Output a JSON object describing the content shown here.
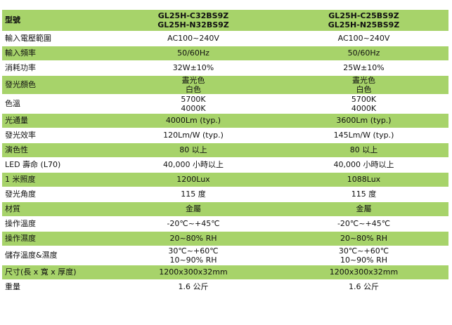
{
  "header": {
    "label": "型號",
    "model_a": [
      "GL25H-C32BS9Z",
      "GL25H-N32BS9Z"
    ],
    "model_b": [
      "GL25H-C25BS9Z",
      "GL25H-N25BS9Z"
    ]
  },
  "rows": [
    {
      "label": "輸入電壓範圍",
      "a": [
        "AC100~240V"
      ],
      "b": [
        "AC100~240V"
      ]
    },
    {
      "label": "輸入頻率",
      "a": [
        "50/60Hz"
      ],
      "b": [
        "50/60Hz"
      ]
    },
    {
      "label": "消耗功率",
      "a": [
        "32W±10%"
      ],
      "b": [
        "25W±10%"
      ]
    },
    {
      "label": "發光顏色",
      "a": [
        "晝光色",
        "白色"
      ],
      "b": [
        "晝光色",
        "白色"
      ]
    },
    {
      "label": "色溫",
      "a": [
        "5700K",
        "4000K"
      ],
      "b": [
        "5700K",
        "4000K"
      ]
    },
    {
      "label": "光通量",
      "a": [
        "4000Lm (typ.)"
      ],
      "b": [
        "3600Lm (typ.)"
      ]
    },
    {
      "label": "發光效率",
      "a": [
        "120Lm/W (typ.)"
      ],
      "b": [
        "145Lm/W (typ.)"
      ]
    },
    {
      "label": "演色性",
      "a": [
        "80 以上"
      ],
      "b": [
        "80 以上"
      ]
    },
    {
      "label": "LED 壽命 (L70)",
      "a": [
        "40,000 小時以上"
      ],
      "b": [
        "40,000 小時以上"
      ]
    },
    {
      "label": "1 米照度",
      "a": [
        "1200Lux"
      ],
      "b": [
        "1088Lux"
      ]
    },
    {
      "label": "發光角度",
      "a": [
        "115 度"
      ],
      "b": [
        "115 度"
      ]
    },
    {
      "label": "材質",
      "a": [
        "金屬"
      ],
      "b": [
        "金屬"
      ]
    },
    {
      "label": "操作溫度",
      "a": [
        "-20℃~+45℃"
      ],
      "b": [
        "-20℃~+45℃"
      ]
    },
    {
      "label": "操作濕度",
      "a": [
        "20~80% RH"
      ],
      "b": [
        "20~80% RH"
      ]
    },
    {
      "label": "儲存溫度&濕度",
      "a": [
        "30℃~+60℃",
        "10~90% RH"
      ],
      "b": [
        "30℃~+60℃",
        "10~90% RH"
      ]
    },
    {
      "label": "尺寸(長 x 寬 x 厚度)",
      "a": [
        "1200x300x32mm"
      ],
      "b": [
        "1200x300x32mm"
      ]
    },
    {
      "label": "重量",
      "a": [
        "1.6 公斤"
      ],
      "b": [
        "1.6 公斤"
      ]
    }
  ],
  "colors": {
    "band": "#a7d36a",
    "background": "#ffffff"
  }
}
